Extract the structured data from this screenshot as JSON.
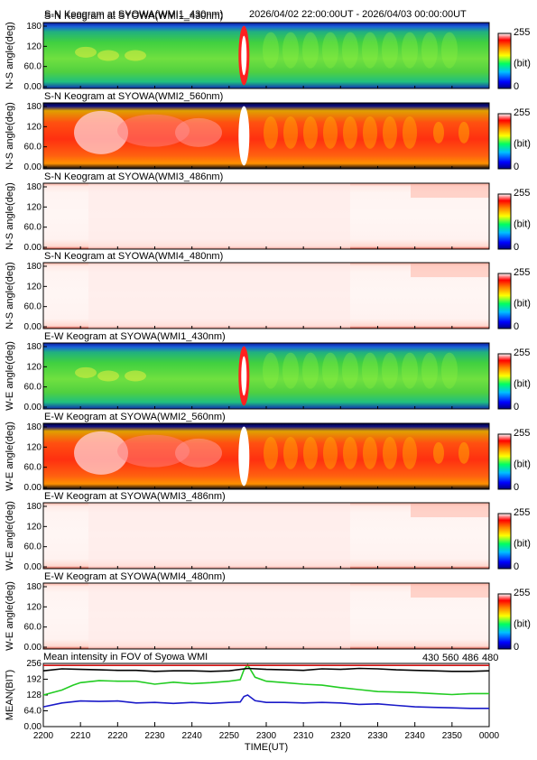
{
  "header": {
    "time_range": "2026/04/02 22:00:00UT - 2026/04/03 00:00:00UT"
  },
  "keograms": [
    {
      "title": "S-N Keogram at SYOWA(WMI1_430nm)",
      "ylabel": "N-S angle(deg)",
      "scheme": "green",
      "burst": 1.0
    },
    {
      "title": "S-N Keogram at SYOWA(WMI2_560nm)",
      "ylabel": "N-S angle(deg)",
      "scheme": "red",
      "burst": 1.0
    },
    {
      "title": "S-N Keogram at SYOWA(WMI3_486nm)",
      "ylabel": "N-S angle(deg)",
      "scheme": "white",
      "burst": 0.0
    },
    {
      "title": "S-N Keogram at SYOWA(WMI4_480nm)",
      "ylabel": "N-S angle(deg)",
      "scheme": "white",
      "burst": 0.0
    },
    {
      "title": "E-W Keogram at SYOWA(WMI1_430nm)",
      "ylabel": "W-E angle(deg)",
      "scheme": "green",
      "burst": 1.0
    },
    {
      "title": "E-W Keogram at SYOWA(WMI2_560nm)",
      "ylabel": "W-E angle(deg)",
      "scheme": "red",
      "burst": 1.0
    },
    {
      "title": "E-W Keogram at SYOWA(WMI3_486nm)",
      "ylabel": "W-E angle(deg)",
      "scheme": "white",
      "burst": 0.0
    },
    {
      "title": "E-W Keogram at SYOWA(WMI4_480nm)",
      "ylabel": "W-E angle(deg)",
      "scheme": "white",
      "burst": 0.0
    }
  ],
  "keogram_yticks": [
    "0.00",
    "60.0",
    "120",
    "180"
  ],
  "colorbar": {
    "max_label": "255",
    "unit_label": "(bit)",
    "min_label": "0"
  },
  "chart_data": {
    "type": "line",
    "title": "Mean intensity in FOV of Syowa WMI",
    "xlabel": "TIME(UT)",
    "ylabel": "MEAN(BIT)",
    "x_ticks": [
      "2200",
      "2210",
      "2220",
      "2230",
      "2240",
      "2250",
      "2300",
      "2310",
      "2320",
      "2330",
      "2340",
      "2350",
      "0000"
    ],
    "y_ticks": [
      "0.00",
      "64.0",
      "128",
      "192",
      "256"
    ],
    "ylim": [
      0,
      256
    ],
    "x_minutes_range": [
      0,
      120
    ],
    "legend_placement": "top-right",
    "series": [
      {
        "name": "430",
        "color": "#1a1ac8",
        "x": [
          0,
          5,
          10,
          15,
          20,
          25,
          30,
          35,
          40,
          45,
          50,
          53,
          54,
          55,
          57,
          60,
          65,
          70,
          75,
          80,
          85,
          90,
          95,
          100,
          105,
          110,
          115,
          120
        ],
        "y": [
          80,
          96,
          104,
          102,
          104,
          96,
          98,
          94,
          98,
          94,
          98,
          100,
          122,
          128,
          105,
          98,
          98,
          96,
          98,
          96,
          90,
          92,
          86,
          80,
          78,
          76,
          74,
          74
        ]
      },
      {
        "name": "560",
        "color": "#22cc22",
        "x": [
          0,
          5,
          8,
          10,
          15,
          20,
          25,
          30,
          35,
          40,
          45,
          50,
          53,
          54,
          55,
          57,
          60,
          65,
          70,
          75,
          80,
          85,
          90,
          95,
          100,
          105,
          110,
          115,
          120
        ],
        "y": [
          128,
          148,
          168,
          178,
          186,
          184,
          184,
          172,
          180,
          174,
          178,
          184,
          190,
          230,
          250,
          200,
          184,
          178,
          172,
          168,
          158,
          150,
          142,
          140,
          138,
          134,
          130,
          134,
          134
        ]
      },
      {
        "name": "486",
        "color": "#d01010",
        "x": [
          0,
          30,
          60,
          90,
          120
        ],
        "y": [
          248,
          248,
          248,
          248,
          248
        ]
      },
      {
        "name": "480",
        "color": "#000000",
        "x": [
          0,
          5,
          10,
          15,
          20,
          25,
          30,
          35,
          40,
          45,
          50,
          55,
          60,
          65,
          70,
          75,
          80,
          85,
          90,
          95,
          100,
          105,
          110,
          115,
          120
        ],
        "y": [
          226,
          234,
          232,
          230,
          228,
          228,
          224,
          226,
          226,
          224,
          226,
          236,
          232,
          230,
          228,
          234,
          232,
          236,
          234,
          230,
          228,
          226,
          224,
          224,
          226
        ]
      }
    ]
  }
}
